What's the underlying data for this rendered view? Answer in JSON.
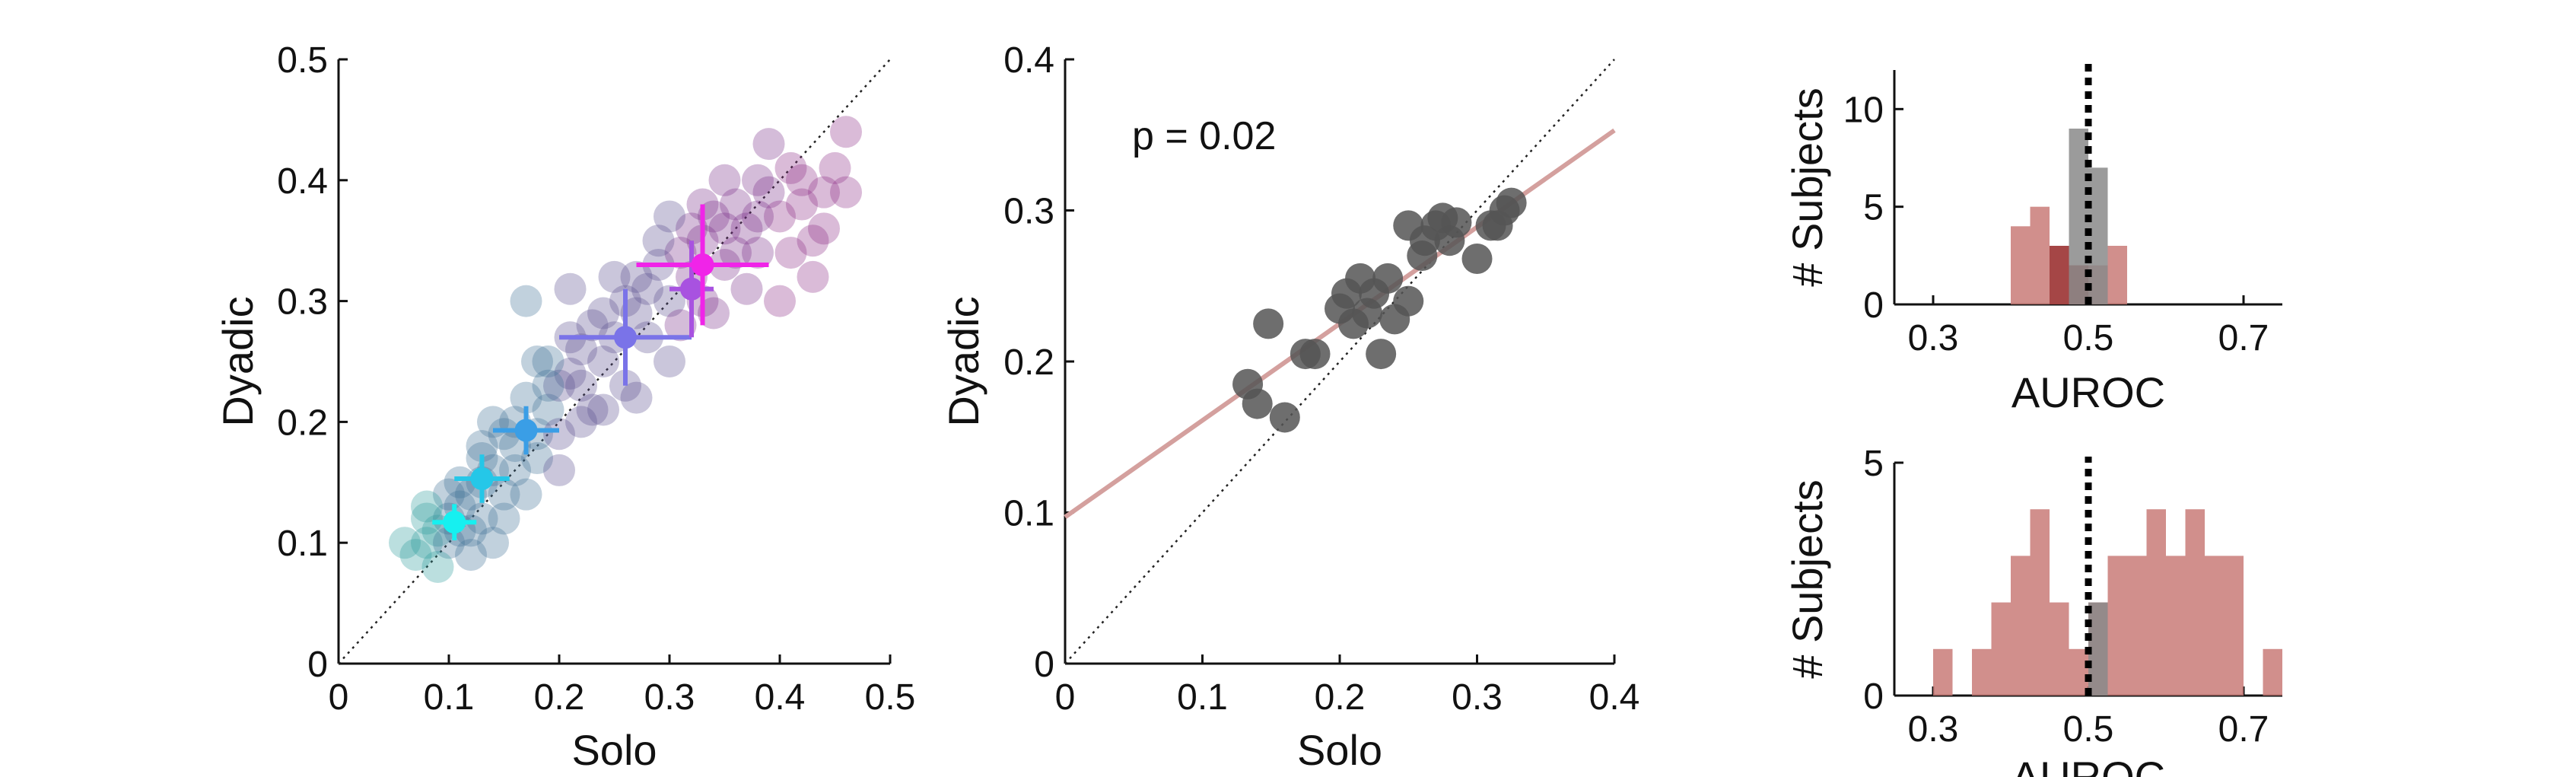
{
  "chart_data": [
    {
      "type": "scatter",
      "xlabel": "Solo",
      "ylabel": "Dyadic",
      "xlim": [
        0,
        0.5
      ],
      "ylim": [
        0,
        0.5
      ],
      "xticks": [
        "0",
        "0.1",
        "0.2",
        "0.3",
        "0.4",
        "0.5"
      ],
      "yticks": [
        "0",
        "0.1",
        "0.2",
        "0.3",
        "0.4",
        "0.5"
      ],
      "identity_line": true,
      "colors": [
        "#2a9d9a",
        "#3f6f96",
        "#5a4f8f",
        "#7a2e8a",
        "#8b2a86"
      ],
      "points": [
        [
          0.07,
          0.09
        ],
        [
          0.08,
          0.1
        ],
        [
          0.09,
          0.11
        ],
        [
          0.1,
          0.12
        ],
        [
          0.11,
          0.13
        ],
        [
          0.12,
          0.14
        ],
        [
          0.08,
          0.12
        ],
        [
          0.1,
          0.1
        ],
        [
          0.12,
          0.11
        ],
        [
          0.13,
          0.12
        ],
        [
          0.11,
          0.15
        ],
        [
          0.14,
          0.16
        ],
        [
          0.09,
          0.08
        ],
        [
          0.13,
          0.17
        ],
        [
          0.15,
          0.14
        ],
        [
          0.16,
          0.18
        ],
        [
          0.14,
          0.2
        ],
        [
          0.17,
          0.22
        ],
        [
          0.18,
          0.19
        ],
        [
          0.19,
          0.21
        ],
        [
          0.2,
          0.23
        ],
        [
          0.21,
          0.24
        ],
        [
          0.16,
          0.2
        ],
        [
          0.18,
          0.25
        ],
        [
          0.22,
          0.26
        ],
        [
          0.23,
          0.28
        ],
        [
          0.24,
          0.25
        ],
        [
          0.25,
          0.27
        ],
        [
          0.26,
          0.3
        ],
        [
          0.21,
          0.27
        ],
        [
          0.27,
          0.32
        ],
        [
          0.28,
          0.31
        ],
        [
          0.29,
          0.33
        ],
        [
          0.3,
          0.3
        ],
        [
          0.31,
          0.34
        ],
        [
          0.32,
          0.36
        ],
        [
          0.33,
          0.35
        ],
        [
          0.34,
          0.37
        ],
        [
          0.35,
          0.33
        ],
        [
          0.36,
          0.38
        ],
        [
          0.37,
          0.36
        ],
        [
          0.38,
          0.4
        ],
        [
          0.39,
          0.39
        ],
        [
          0.4,
          0.37
        ],
        [
          0.41,
          0.41
        ],
        [
          0.42,
          0.38
        ],
        [
          0.43,
          0.35
        ],
        [
          0.44,
          0.39
        ],
        [
          0.45,
          0.41
        ],
        [
          0.46,
          0.44
        ],
        [
          0.3,
          0.37
        ],
        [
          0.33,
          0.3
        ],
        [
          0.36,
          0.34
        ],
        [
          0.4,
          0.3
        ],
        [
          0.43,
          0.32
        ],
        [
          0.38,
          0.34
        ],
        [
          0.35,
          0.4
        ],
        [
          0.32,
          0.32
        ],
        [
          0.28,
          0.27
        ],
        [
          0.26,
          0.23
        ],
        [
          0.24,
          0.21
        ],
        [
          0.2,
          0.19
        ],
        [
          0.22,
          0.2
        ],
        [
          0.18,
          0.17
        ],
        [
          0.15,
          0.12
        ],
        [
          0.17,
          0.14
        ],
        [
          0.19,
          0.25
        ],
        [
          0.14,
          0.1
        ],
        [
          0.12,
          0.09
        ],
        [
          0.06,
          0.1
        ],
        [
          0.25,
          0.32
        ],
        [
          0.3,
          0.25
        ],
        [
          0.27,
          0.22
        ],
        [
          0.41,
          0.34
        ],
        [
          0.44,
          0.36
        ],
        [
          0.39,
          0.43
        ],
        [
          0.46,
          0.39
        ],
        [
          0.37,
          0.31
        ],
        [
          0.34,
          0.29
        ],
        [
          0.31,
          0.28
        ],
        [
          0.21,
          0.31
        ],
        [
          0.17,
          0.3
        ],
        [
          0.23,
          0.21
        ],
        [
          0.2,
          0.16
        ],
        [
          0.13,
          0.15
        ],
        [
          0.16,
          0.16
        ],
        [
          0.1,
          0.14
        ],
        [
          0.08,
          0.13
        ],
        [
          0.11,
          0.11
        ],
        [
          0.35,
          0.36
        ],
        [
          0.38,
          0.37
        ],
        [
          0.42,
          0.4
        ],
        [
          0.33,
          0.38
        ],
        [
          0.29,
          0.35
        ],
        [
          0.27,
          0.29
        ],
        [
          0.24,
          0.29
        ],
        [
          0.22,
          0.23
        ],
        [
          0.19,
          0.23
        ],
        [
          0.15,
          0.19
        ],
        [
          0.13,
          0.18
        ]
      ],
      "means": [
        {
          "x": 0.105,
          "y": 0.117,
          "xerr": 0.02,
          "yerr": 0.015,
          "color": "#16f0f0"
        },
        {
          "x": 0.13,
          "y": 0.153,
          "xerr": 0.025,
          "yerr": 0.02,
          "color": "#25c7e8"
        },
        {
          "x": 0.17,
          "y": 0.193,
          "xerr": 0.03,
          "yerr": 0.02,
          "color": "#3a9ee6"
        },
        {
          "x": 0.26,
          "y": 0.27,
          "xerr": 0.06,
          "yerr": 0.04,
          "color": "#7a73e8"
        },
        {
          "x": 0.32,
          "y": 0.31,
          "xerr": 0.02,
          "yerr": 0.04,
          "color": "#a852e0"
        },
        {
          "x": 0.33,
          "y": 0.33,
          "xerr": 0.06,
          "yerr": 0.05,
          "color": "#f024e8"
        }
      ]
    },
    {
      "type": "scatter",
      "xlabel": "Solo",
      "ylabel": "Dyadic",
      "xlim": [
        0,
        0.4
      ],
      "ylim": [
        0,
        0.4
      ],
      "xticks": [
        "0",
        "0.1",
        "0.2",
        "0.3",
        "0.4"
      ],
      "yticks": [
        "0",
        "0.1",
        "0.2",
        "0.3",
        "0.4"
      ],
      "annotation": "p = 0.02",
      "identity_line": true,
      "regression": {
        "intercept": 0.097,
        "slope": 0.64,
        "color": "#d4a09e"
      },
      "point_color": "#555555",
      "points": [
        [
          0.133,
          0.185
        ],
        [
          0.14,
          0.172
        ],
        [
          0.148,
          0.225
        ],
        [
          0.16,
          0.163
        ],
        [
          0.175,
          0.205
        ],
        [
          0.182,
          0.205
        ],
        [
          0.2,
          0.235
        ],
        [
          0.205,
          0.245
        ],
        [
          0.21,
          0.225
        ],
        [
          0.215,
          0.255
        ],
        [
          0.22,
          0.232
        ],
        [
          0.225,
          0.245
        ],
        [
          0.23,
          0.205
        ],
        [
          0.235,
          0.255
        ],
        [
          0.24,
          0.228
        ],
        [
          0.25,
          0.29
        ],
        [
          0.26,
          0.27
        ],
        [
          0.262,
          0.28
        ],
        [
          0.27,
          0.29
        ],
        [
          0.275,
          0.295
        ],
        [
          0.28,
          0.28
        ],
        [
          0.285,
          0.292
        ],
        [
          0.3,
          0.268
        ],
        [
          0.31,
          0.29
        ],
        [
          0.315,
          0.29
        ],
        [
          0.32,
          0.3
        ],
        [
          0.325,
          0.305
        ],
        [
          0.25,
          0.24
        ]
      ]
    },
    {
      "type": "bar",
      "xlabel": "AUROC",
      "ylabel": "# Subjects",
      "xlim": [
        0.25,
        0.75
      ],
      "ylim": [
        0,
        12
      ],
      "xticks": [
        "0.3",
        "0.5",
        "0.7"
      ],
      "yticks": [
        "0",
        "5",
        "10"
      ],
      "reference_x": 0.5,
      "bin_width": 0.025,
      "series": [
        {
          "color": "#c97b78",
          "bins": [
            [
              0.4125,
              4
            ],
            [
              0.4375,
              5
            ],
            [
              0.4625,
              3
            ],
            [
              0.4875,
              2
            ],
            [
              0.5125,
              2
            ],
            [
              0.5375,
              3
            ]
          ]
        },
        {
          "color": "#9e3a3a",
          "bins": [
            [
              0.4625,
              3
            ],
            [
              0.4875,
              2
            ]
          ]
        },
        {
          "color": "#8a8a8a",
          "bins": [
            [
              0.4875,
              9
            ],
            [
              0.5125,
              7
            ]
          ]
        }
      ]
    },
    {
      "type": "bar",
      "xlabel": "AUROC",
      "ylabel": "# Subjects",
      "xlim": [
        0.25,
        0.75
      ],
      "ylim": [
        0,
        5
      ],
      "xticks": [
        "0.3",
        "0.5",
        "0.7"
      ],
      "yticks": [
        "0",
        "5"
      ],
      "reference_x": 0.5,
      "bin_width": 0.025,
      "series": [
        {
          "color": "#c97b78",
          "bins": [
            [
              0.3125,
              1
            ],
            [
              0.3625,
              1
            ],
            [
              0.3875,
              2
            ],
            [
              0.4125,
              3
            ],
            [
              0.4375,
              4
            ],
            [
              0.4625,
              2
            ],
            [
              0.4875,
              1
            ],
            [
              0.5125,
              2
            ],
            [
              0.5375,
              3
            ],
            [
              0.5625,
              3
            ],
            [
              0.5875,
              4
            ],
            [
              0.6125,
              3
            ],
            [
              0.6375,
              4
            ],
            [
              0.6625,
              3
            ],
            [
              0.6875,
              3
            ],
            [
              0.7375,
              1
            ]
          ]
        },
        {
          "color": "#8a8a8a",
          "bins": [
            [
              0.5125,
              2
            ]
          ]
        }
      ]
    }
  ]
}
